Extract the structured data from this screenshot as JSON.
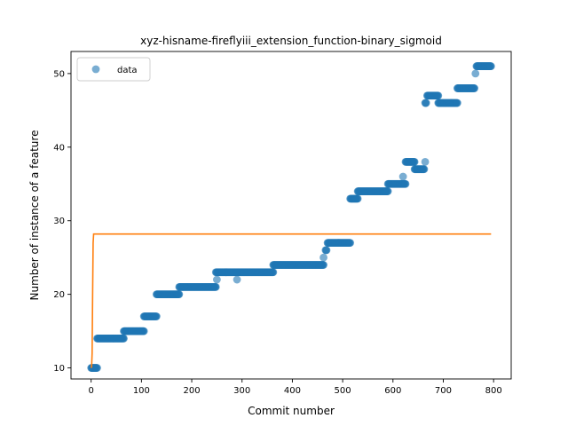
{
  "chart_data": {
    "type": "scatter",
    "title": "xyz-hisname-fireflyiii_extension_function-binary_sigmoid",
    "xlabel": "Commit number",
    "ylabel": "Number of instance of a feature",
    "xlim": [
      -40,
      835
    ],
    "ylim": [
      8.5,
      53
    ],
    "xticks": [
      0,
      100,
      200,
      300,
      400,
      500,
      600,
      700,
      800
    ],
    "yticks": [
      10,
      20,
      30,
      40,
      50
    ],
    "grid": false,
    "legend": {
      "placement": "top-left",
      "entries": [
        "data"
      ]
    },
    "colors": {
      "data": "#1f77b4",
      "fit": "#ff7f0e"
    },
    "series": [
      {
        "name": "data",
        "kind": "points",
        "segments": [
          {
            "x_start": 0,
            "x_end": 12,
            "y": 10
          },
          {
            "x_start": 12,
            "x_end": 65,
            "y": 14
          },
          {
            "x_start": 65,
            "x_end": 105,
            "y": 15
          },
          {
            "x_start": 105,
            "x_end": 130,
            "y": 17
          },
          {
            "x_start": 130,
            "x_end": 175,
            "y": 20
          },
          {
            "x_start": 175,
            "x_end": 248,
            "y": 21
          },
          {
            "x_start": 248,
            "x_end": 362,
            "y": 23
          },
          {
            "x_start": 362,
            "x_end": 462,
            "y": 24
          },
          {
            "x_start": 466,
            "x_end": 468,
            "y": 26
          },
          {
            "x_start": 470,
            "x_end": 515,
            "y": 27
          },
          {
            "x_start": 515,
            "x_end": 530,
            "y": 33
          },
          {
            "x_start": 530,
            "x_end": 590,
            "y": 34
          },
          {
            "x_start": 590,
            "x_end": 625,
            "y": 35
          },
          {
            "x_start": 625,
            "x_end": 643,
            "y": 38
          },
          {
            "x_start": 643,
            "x_end": 662,
            "y": 37
          },
          {
            "x_start": 664,
            "x_end": 666,
            "y": 46
          },
          {
            "x_start": 668,
            "x_end": 690,
            "y": 47
          },
          {
            "x_start": 690,
            "x_end": 728,
            "y": 46
          },
          {
            "x_start": 728,
            "x_end": 762,
            "y": 48
          },
          {
            "x_start": 766,
            "x_end": 795,
            "y": 51
          }
        ],
        "points": [
          {
            "x": 250,
            "y": 22
          },
          {
            "x": 290,
            "y": 22
          },
          {
            "x": 462,
            "y": 25
          },
          {
            "x": 620,
            "y": 36
          },
          {
            "x": 664,
            "y": 38
          },
          {
            "x": 764,
            "y": 50
          }
        ]
      },
      {
        "name": "",
        "kind": "line",
        "x": [
          0,
          1,
          2,
          3,
          4,
          5,
          795
        ],
        "y": [
          10,
          10.2,
          12,
          20,
          27,
          28.2,
          28.2
        ]
      }
    ]
  }
}
